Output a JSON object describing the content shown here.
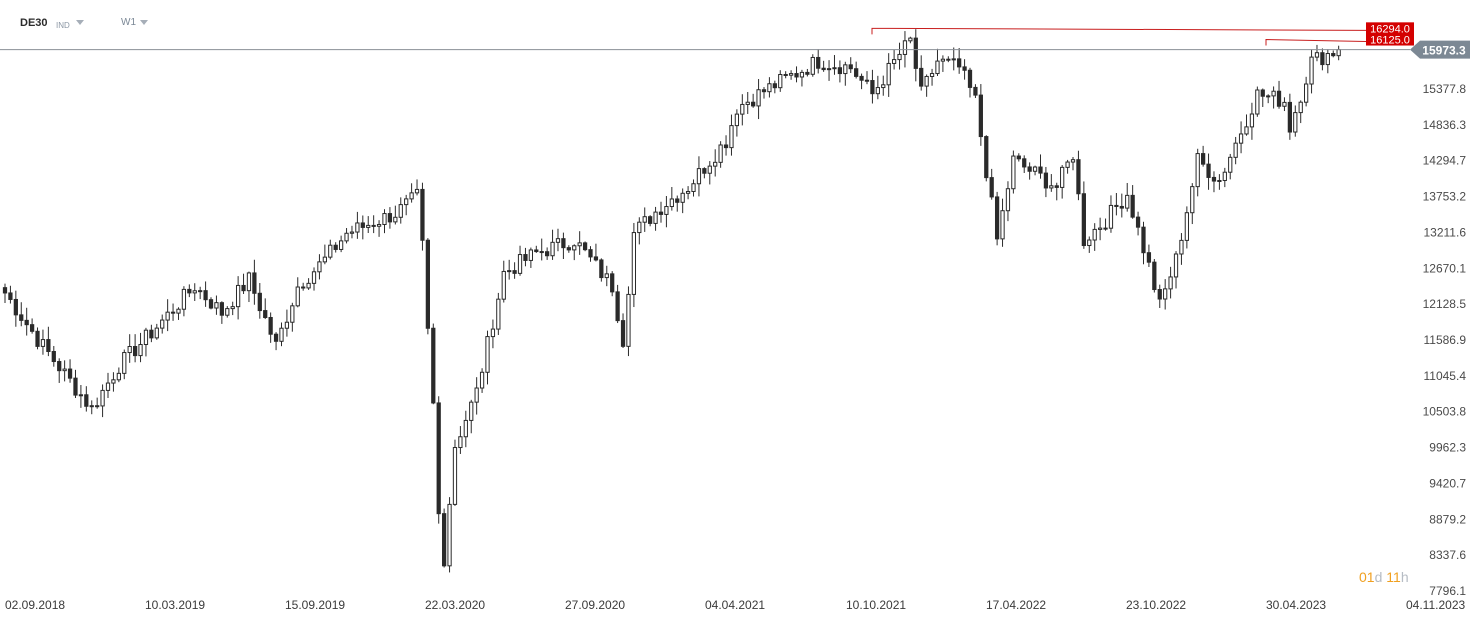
{
  "toolbar": {
    "symbol": "DE30",
    "symbol_type": "IND",
    "interval": "W1"
  },
  "price_tags": {
    "last_price": "15973.3",
    "level_high": "16294.0",
    "level_second": "16125.0"
  },
  "countdown": {
    "days": "01",
    "days_unit": "d",
    "hours": "11",
    "hours_unit": "h"
  },
  "colors": {
    "candle": "#2a2a2a",
    "level_line": "#c81e1e",
    "level_tag": "#d40000",
    "last_tag": "#7c8894",
    "last_line": "#8a8f96",
    "countdown": "#f0a020"
  },
  "chart_data": {
    "type": "candlestick",
    "title": "",
    "xlabel": "",
    "ylabel": "",
    "ylim": [
      7796.1,
      16294.0
    ],
    "grid": false,
    "y_ticks": [
      "15377.8",
      "14836.3",
      "14294.7",
      "13753.2",
      "13211.6",
      "12670.1",
      "12128.5",
      "11586.9",
      "11045.4",
      "10503.8",
      "9962.3",
      "9420.7",
      "8879.2",
      "8337.6",
      "7796.1"
    ],
    "x_ticks": [
      "02.09.2018",
      "10.03.2019",
      "15.09.2019",
      "22.03.2020",
      "27.09.2020",
      "04.04.2021",
      "10.10.2021",
      "17.04.2022",
      "23.10.2022",
      "30.04.2023",
      "04.11.2023"
    ],
    "horizontal_levels": [
      16294.0,
      16125.0,
      15973.3
    ],
    "close_path": [
      {
        "date": "2018-09-02",
        "close": 12300
      },
      {
        "date": "2018-10-14",
        "close": 11600
      },
      {
        "date": "2018-12-23",
        "close": 10550
      },
      {
        "date": "2019-01-27",
        "close": 11200
      },
      {
        "date": "2019-03-10",
        "close": 11700
      },
      {
        "date": "2019-05-05",
        "close": 12400
      },
      {
        "date": "2019-06-09",
        "close": 12000
      },
      {
        "date": "2019-07-14",
        "close": 12500
      },
      {
        "date": "2019-08-18",
        "close": 11500
      },
      {
        "date": "2019-09-15",
        "close": 12400
      },
      {
        "date": "2019-10-20",
        "close": 12800
      },
      {
        "date": "2019-11-17",
        "close": 13200
      },
      {
        "date": "2020-01-19",
        "close": 13500
      },
      {
        "date": "2020-02-16",
        "close": 13750
      },
      {
        "date": "2020-02-23",
        "close": 13000
      },
      {
        "date": "2020-03-01",
        "close": 11700
      },
      {
        "date": "2020-03-08",
        "close": 10600
      },
      {
        "date": "2020-03-15",
        "close": 8950
      },
      {
        "date": "2020-03-22",
        "close": 8300
      },
      {
        "date": "2020-04-05",
        "close": 10000
      },
      {
        "date": "2020-05-03",
        "close": 10800
      },
      {
        "date": "2020-06-07",
        "close": 12600
      },
      {
        "date": "2020-07-19",
        "close": 12900
      },
      {
        "date": "2020-09-06",
        "close": 13100
      },
      {
        "date": "2020-10-25",
        "close": 12400
      },
      {
        "date": "2020-11-08",
        "close": 11600
      },
      {
        "date": "2020-11-22",
        "close": 13200
      },
      {
        "date": "2020-12-27",
        "close": 13600
      },
      {
        "date": "2021-01-31",
        "close": 13900
      },
      {
        "date": "2021-03-21",
        "close": 14600
      },
      {
        "date": "2021-04-04",
        "close": 15100
      },
      {
        "date": "2021-05-09",
        "close": 15350
      },
      {
        "date": "2021-07-18",
        "close": 15800
      },
      {
        "date": "2021-08-29",
        "close": 15700
      },
      {
        "date": "2021-09-26",
        "close": 15300
      },
      {
        "date": "2021-10-31",
        "close": 15900
      },
      {
        "date": "2021-11-14",
        "close": 16100
      },
      {
        "date": "2021-11-28",
        "close": 15300
      },
      {
        "date": "2021-12-19",
        "close": 15800
      },
      {
        "date": "2022-01-16",
        "close": 15700
      },
      {
        "date": "2022-02-06",
        "close": 15200
      },
      {
        "date": "2022-03-06",
        "close": 13100
      },
      {
        "date": "2022-03-27",
        "close": 14300
      },
      {
        "date": "2022-04-24",
        "close": 14100
      },
      {
        "date": "2022-05-22",
        "close": 13900
      },
      {
        "date": "2022-06-12",
        "close": 14400
      },
      {
        "date": "2022-06-26",
        "close": 13100
      },
      {
        "date": "2022-07-24",
        "close": 13400
      },
      {
        "date": "2022-08-21",
        "close": 13800
      },
      {
        "date": "2022-09-18",
        "close": 12700
      },
      {
        "date": "2022-10-02",
        "close": 12100
      },
      {
        "date": "2022-10-23",
        "close": 12800
      },
      {
        "date": "2022-11-20",
        "close": 14300
      },
      {
        "date": "2022-12-18",
        "close": 14000
      },
      {
        "date": "2023-02-05",
        "close": 15300
      },
      {
        "date": "2023-03-12",
        "close": 15200
      },
      {
        "date": "2023-03-19",
        "close": 14800
      },
      {
        "date": "2023-04-16",
        "close": 15800
      },
      {
        "date": "2023-05-21",
        "close": 15973.3
      }
    ]
  }
}
